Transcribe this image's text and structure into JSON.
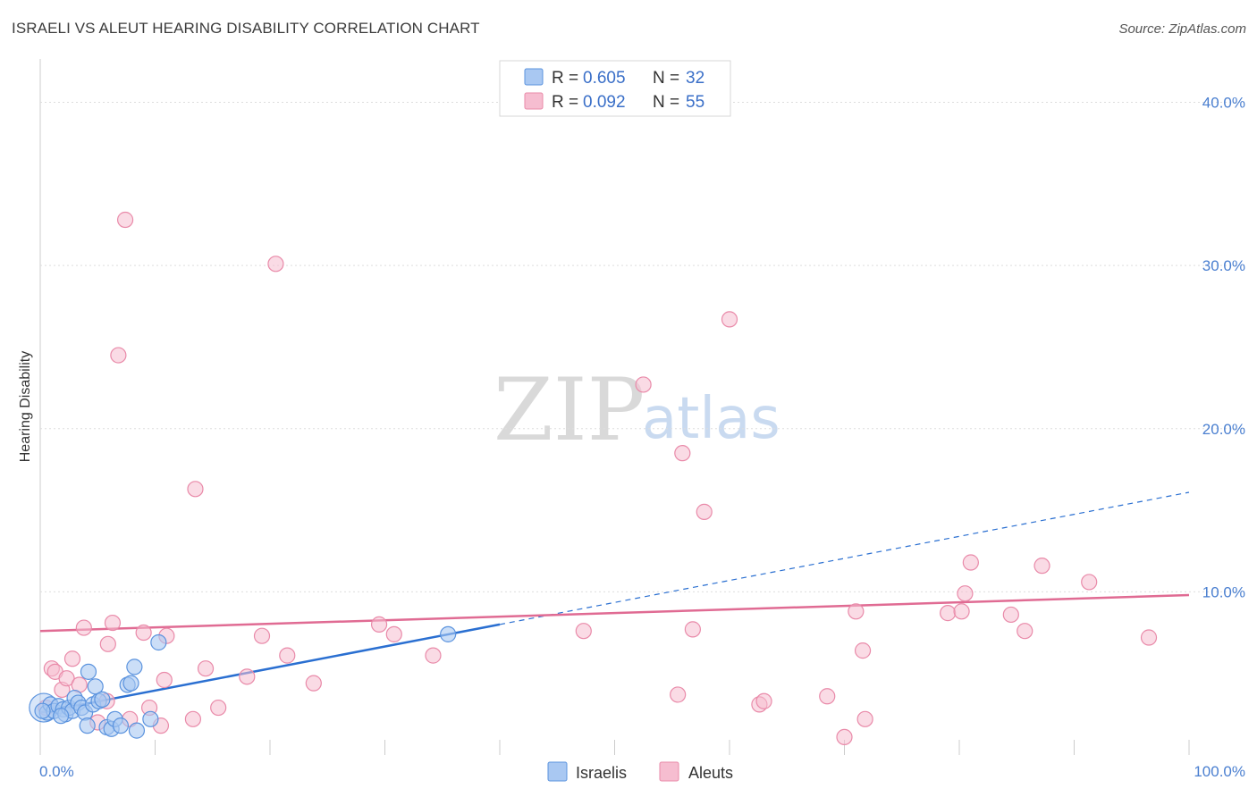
{
  "header": {
    "title": "ISRAELI VS ALEUT HEARING DISABILITY CORRELATION CHART",
    "source": "Source: ZipAtlas.com"
  },
  "watermark": {
    "zip": "ZIP",
    "atlas": "atlas"
  },
  "legend": {
    "series": [
      {
        "r_label": "R = ",
        "r_value": "0.605",
        "n_label": "N = ",
        "n_value": "32"
      },
      {
        "r_label": "R = ",
        "r_value": "0.092",
        "n_label": "N = ",
        "n_value": "55"
      }
    ]
  },
  "bottom_legend": {
    "items": [
      "Israelis",
      "Aleuts"
    ]
  },
  "colors": {
    "israelis_fill": "#a9c8f2",
    "israelis_stroke": "#5b93de",
    "israelis_line": "#2a6fd1",
    "aleuts_fill": "#f6bdd0",
    "aleuts_stroke": "#e98aa9",
    "aleuts_line": "#e06b93",
    "grid": "#dddddd",
    "tick_label": "#4a7fd0"
  },
  "chart_data": {
    "type": "scatter",
    "title": "ISRAELI VS ALEUT HEARING DISABILITY CORRELATION CHART",
    "xlabel": "",
    "ylabel": "Hearing Disability",
    "xlim": [
      0,
      100
    ],
    "ylim": [
      0,
      42
    ],
    "x_tick_labels": [
      "0.0%",
      "100.0%"
    ],
    "y_ticks": [
      10,
      20,
      30,
      40
    ],
    "y_tick_labels": [
      "10.0%",
      "20.0%",
      "30.0%",
      "40.0%"
    ],
    "legend_position": "top-center",
    "series": [
      {
        "name": "Israelis",
        "r": 0.605,
        "n": 32,
        "points": [
          [
            0.3,
            2.9
          ],
          [
            0.6,
            2.6
          ],
          [
            0.9,
            3.1
          ],
          [
            1.2,
            2.7
          ],
          [
            1.6,
            3.0
          ],
          [
            2.0,
            2.8
          ],
          [
            2.2,
            2.5
          ],
          [
            2.5,
            2.9
          ],
          [
            2.8,
            2.7
          ],
          [
            3.0,
            3.5
          ],
          [
            3.3,
            3.2
          ],
          [
            3.6,
            2.9
          ],
          [
            3.9,
            2.6
          ],
          [
            4.1,
            1.8
          ],
          [
            4.2,
            5.1
          ],
          [
            4.6,
            3.1
          ],
          [
            4.8,
            4.2
          ],
          [
            5.1,
            3.3
          ],
          [
            5.4,
            3.4
          ],
          [
            5.8,
            1.7
          ],
          [
            6.2,
            1.6
          ],
          [
            6.5,
            2.2
          ],
          [
            7.0,
            1.8
          ],
          [
            7.6,
            4.3
          ],
          [
            7.9,
            4.4
          ],
          [
            8.2,
            5.4
          ],
          [
            8.4,
            1.5
          ],
          [
            9.6,
            2.2
          ],
          [
            10.3,
            6.9
          ],
          [
            35.5,
            7.4
          ],
          [
            0.2,
            2.7
          ],
          [
            1.8,
            2.4
          ]
        ],
        "trend": {
          "x_start": 0,
          "y_start": 2.6,
          "x_solid_end": 40,
          "y_solid_end": 8.0,
          "x_dash_end": 100,
          "y_dash_end": 16.1
        }
      },
      {
        "name": "Aleuts",
        "r": 0.092,
        "n": 55,
        "points": [
          [
            7.4,
            32.8
          ],
          [
            20.5,
            30.1
          ],
          [
            6.8,
            24.5
          ],
          [
            13.5,
            16.3
          ],
          [
            1.0,
            5.3
          ],
          [
            1.3,
            5.1
          ],
          [
            1.9,
            4.0
          ],
          [
            2.3,
            4.7
          ],
          [
            2.8,
            5.9
          ],
          [
            3.4,
            4.3
          ],
          [
            3.8,
            7.8
          ],
          [
            5.0,
            2.0
          ],
          [
            5.8,
            3.3
          ],
          [
            5.9,
            6.8
          ],
          [
            6.3,
            8.1
          ],
          [
            7.8,
            2.2
          ],
          [
            9.0,
            7.5
          ],
          [
            9.5,
            2.9
          ],
          [
            10.5,
            1.8
          ],
          [
            10.8,
            4.6
          ],
          [
            11.0,
            7.3
          ],
          [
            13.3,
            2.2
          ],
          [
            14.4,
            5.3
          ],
          [
            15.5,
            2.9
          ],
          [
            18.0,
            4.8
          ],
          [
            19.3,
            7.3
          ],
          [
            21.5,
            6.1
          ],
          [
            23.8,
            4.4
          ],
          [
            29.5,
            8.0
          ],
          [
            30.8,
            7.4
          ],
          [
            34.2,
            6.1
          ],
          [
            47.3,
            7.6
          ],
          [
            52.5,
            22.7
          ],
          [
            55.5,
            3.7
          ],
          [
            55.9,
            18.5
          ],
          [
            56.8,
            7.7
          ],
          [
            57.8,
            14.9
          ],
          [
            60.0,
            26.7
          ],
          [
            62.6,
            3.1
          ],
          [
            63.0,
            3.3
          ],
          [
            68.5,
            3.6
          ],
          [
            70.0,
            1.1
          ],
          [
            71.0,
            8.8
          ],
          [
            71.6,
            6.4
          ],
          [
            71.8,
            2.2
          ],
          [
            79.0,
            8.7
          ],
          [
            80.2,
            8.8
          ],
          [
            80.5,
            9.9
          ],
          [
            81.0,
            11.8
          ],
          [
            84.5,
            8.6
          ],
          [
            85.7,
            7.6
          ],
          [
            87.2,
            11.6
          ],
          [
            91.3,
            10.6
          ],
          [
            96.5,
            7.2
          ],
          [
            0.5,
            2.9
          ]
        ],
        "trend": {
          "x_start": 0,
          "y_start": 7.6,
          "x_end": 100,
          "y_end": 9.8
        }
      }
    ]
  }
}
